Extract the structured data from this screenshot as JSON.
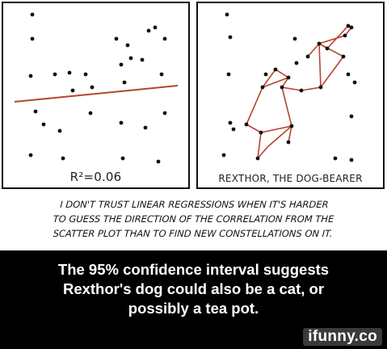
{
  "comic": {
    "left_panel": {
      "label": "R²=0.06"
    },
    "right_panel": {
      "label": "REXTHOR, THE DOG-BEARER"
    },
    "caption_lines": [
      "I DON'T TRUST LINEAR REGRESSIONS WHEN IT'S HARDER",
      "TO GUESS THE DIRECTION OF THE CORRELATION FROM THE",
      "SCATTER PLOT THAN TO FIND NEW CONSTELLATIONS ON IT."
    ]
  },
  "meme": {
    "lines": [
      "The 95% confidence interval suggests",
      "Rexthor's dog could also be a cat, or",
      "possibly a tea pot."
    ],
    "watermark": "ifunny.co"
  },
  "colors": {
    "ink": "#111111",
    "meme_background": "#000000",
    "meme_text": "#ffffff"
  }
}
